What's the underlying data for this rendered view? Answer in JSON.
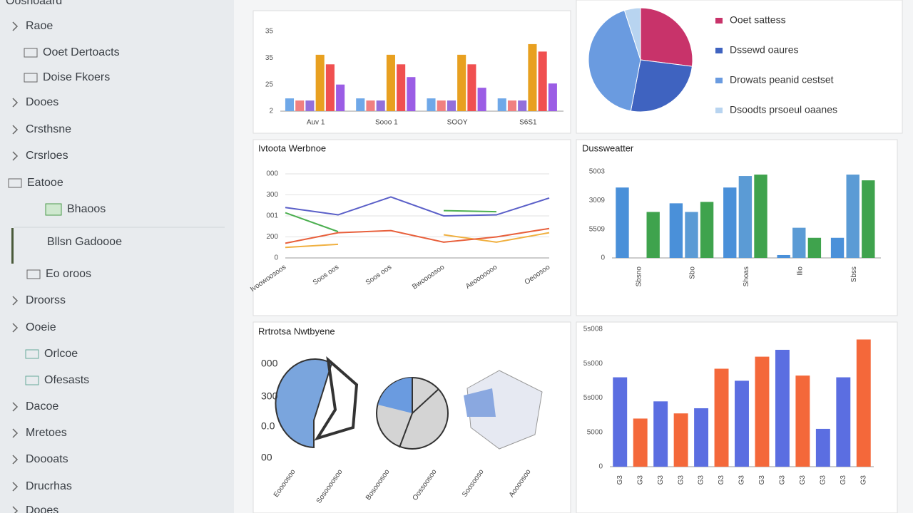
{
  "sidebar": {
    "header": "Ooshoaard",
    "items": [
      "Raoe",
      "Ooet Dertoacts",
      "Doise Fkoers",
      "Dooes",
      "Crsthsne",
      "Crsrloes",
      "Eatooe",
      "Bhaoos",
      "Bllsn Gadoooe",
      "Eo oroos",
      "Droorss",
      "Ooeie",
      "Orlcoe",
      "Ofesasts",
      "Dacoe",
      "Mretoes",
      "Doooats",
      "Drucrhas",
      "Dooes"
    ]
  },
  "chart_data": [
    {
      "type": "bar",
      "categories": [
        "Auv 1",
        "Sooo 1",
        "SOOY",
        "S6S1"
      ],
      "series": [
        {
          "color": "#6fa8e8",
          "values": [
            12,
            12,
            12,
            12
          ]
        },
        {
          "color": "#f08080",
          "values": [
            10,
            10,
            10,
            10
          ]
        },
        {
          "color": "#9370db",
          "values": [
            10,
            10,
            10,
            10
          ]
        },
        {
          "color": "#e8a020",
          "values": [
            53,
            53,
            53,
            63
          ]
        },
        {
          "color": "#f05050",
          "values": [
            44,
            44,
            44,
            56
          ]
        },
        {
          "color": "#9b5de5",
          "values": [
            25,
            32,
            22,
            26
          ]
        }
      ],
      "ylim": [
        0,
        75
      ],
      "yticks": [
        {
          "value": 0,
          "label": "2"
        },
        25,
        {
          "value": 50,
          "label": "35"
        },
        {
          "value": 75,
          "label": "35"
        }
      ]
    },
    {
      "type": "pie",
      "categories": [
        "Ooet sattess",
        "Dssewd oaures",
        "Drowats peanid cestset",
        "Dsoodts prsoeul oaanes"
      ],
      "values": [
        27,
        26,
        42,
        5
      ],
      "colors": [
        "#c8336a",
        "#3f63c0",
        "#6a9be0",
        "#b8d4f0"
      ]
    },
    {
      "type": "line",
      "title": "Ivtoota Werbnoe",
      "categories": [
        "Ivoowoosoos",
        "Soos oos",
        "Soos oos",
        "Bwoooosoo",
        "Aeooooooo",
        "Oeoosoo"
      ],
      "series": [
        {
          "color": "#5a5fc8",
          "values": [
            240,
            205,
            290,
            200,
            205,
            285
          ]
        },
        {
          "color": "#4caf50",
          "values": [
            215,
            125,
            null,
            225,
            220,
            null
          ]
        },
        {
          "color": "#f0b040",
          "values": [
            50,
            65,
            null,
            110,
            75,
            120
          ]
        },
        {
          "color": "#e8603c",
          "values": [
            70,
            120,
            130,
            75,
            100,
            140
          ]
        }
      ],
      "ylim": [
        0,
        400
      ],
      "yticks": [
        0,
        {
          "value": 100,
          "label": "200"
        },
        {
          "value": 200,
          "label": "001"
        },
        300,
        {
          "value": 400,
          "label": "000"
        }
      ],
      "grid": true
    },
    {
      "type": "bar",
      "title": "Dussweatter",
      "categories": [
        "Sbsno",
        "Sbo",
        "Shoas",
        "Ilio",
        "Sbss"
      ],
      "series": [
        {
          "color": "#4a90d9",
          "values": [
            2.45,
            1.9,
            2.45,
            0.1,
            0.7
          ]
        },
        {
          "color": "#5b9bd5",
          "values": [
            null,
            1.6,
            2.85,
            1.05,
            2.9
          ]
        },
        {
          "color": "#3fa34d",
          "values": [
            1.6,
            1.95,
            2.9,
            0.7,
            2.7
          ]
        }
      ],
      "ylim": [
        0,
        3
      ],
      "yticks": [
        0,
        {
          "value": 1,
          "label": "5509"
        },
        {
          "value": 2,
          "label": "3009"
        },
        {
          "value": 3,
          "label": "5003"
        }
      ]
    },
    {
      "type": "bar",
      "categories": [
        "G3",
        "G3",
        "G3",
        "G3",
        "G3",
        "G3",
        "G3",
        "G3",
        "G3",
        "G3",
        "G3",
        "G3",
        "G3"
      ],
      "values": [
        2.6,
        1.4,
        1.9,
        1.55,
        1.7,
        2.85,
        2.5,
        3.2,
        3.4,
        2.65,
        1.1,
        2.6,
        3.7
      ],
      "colors": [
        "#5b6ee1",
        "#f4683a",
        "#5b6ee1",
        "#f4683a",
        "#5b6ee1",
        "#f4683a",
        "#5b6ee1",
        "#f4683a",
        "#5b6ee1",
        "#f4683a",
        "#5b6ee1",
        "#5b6ee1",
        "#f4683a"
      ],
      "ylim": [
        0,
        4
      ],
      "yticks": [
        0,
        {
          "value": 1,
          "label": "5000"
        },
        {
          "value": 2,
          "label": "5s000"
        },
        {
          "value": 3,
          "label": "5s000"
        },
        {
          "value": 4,
          "label": "5s008"
        }
      ]
    }
  ],
  "misc_panel": {
    "title": "Rrtrotsa Nwtbyene",
    "ylabels": [
      "000",
      "300",
      "0.0",
      "00"
    ],
    "xlabels": [
      "Eoooosoo",
      "Sosoooosoo",
      "Bosooosoo",
      "Oossoosoo",
      "Soosooso",
      "Aoooosoo"
    ]
  }
}
